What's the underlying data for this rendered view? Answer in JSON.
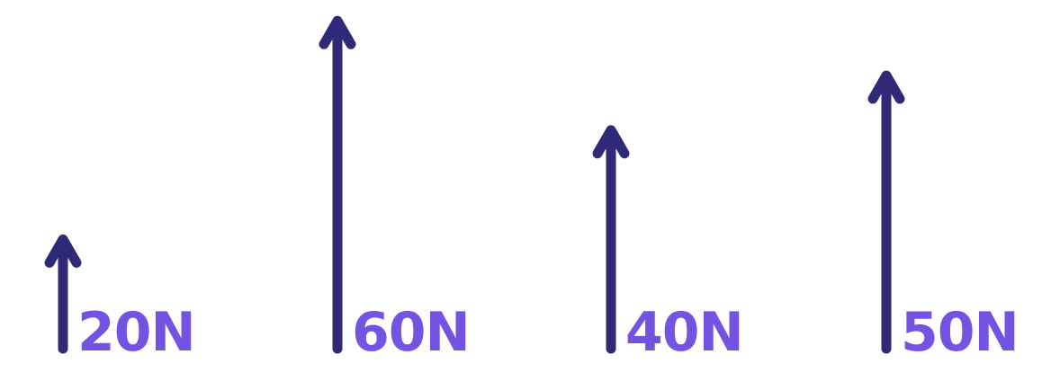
{
  "colors": {
    "arrow": "#2f2a78",
    "label": "#7452e2",
    "background": "#ffffff"
  },
  "forces": [
    {
      "value": 20,
      "label": "20N"
    },
    {
      "value": 60,
      "label": "60N"
    },
    {
      "value": 40,
      "label": "40N"
    },
    {
      "value": 50,
      "label": "50N"
    }
  ]
}
